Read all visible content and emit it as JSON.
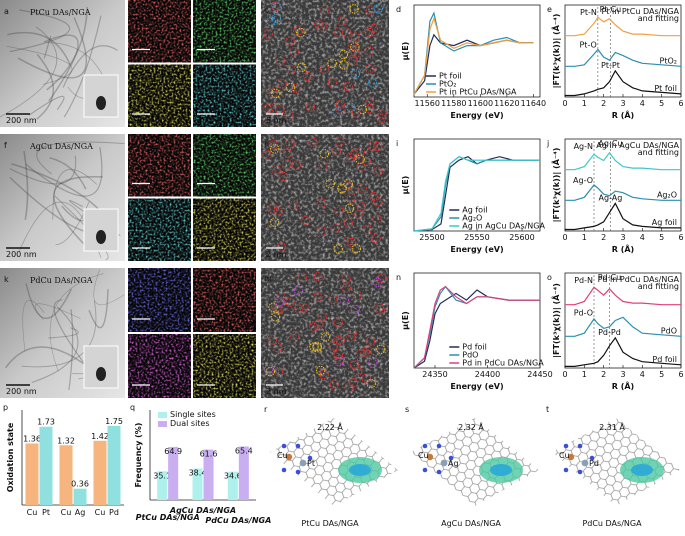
{
  "rows": [
    {
      "tem": {
        "letter": "a",
        "label": "PtCu DAs/NGA",
        "scale": "200 nm"
      },
      "eds": {
        "letter": "b",
        "maps": [
          {
            "element": "C",
            "scale": "100 nm",
            "color": "#e02424"
          },
          {
            "element": "N",
            "scale": "100 nm",
            "color": "#22c02a"
          },
          {
            "element": "Pt",
            "scale": "100 nm",
            "color": "#d8d024"
          },
          {
            "element": "Cu",
            "scale": "100 nm",
            "color": "#24bec8"
          }
        ]
      },
      "haadf": {
        "letter": "c",
        "scale": "5 nm",
        "circle_colors": [
          "#e03030",
          "#f0c020",
          "#30a0e0"
        ]
      },
      "xanes": {
        "letter": "d",
        "type": "line",
        "ylabel": "μ(E)",
        "xlabel": "Energy (eV)",
        "xlim": [
          11550,
          11645
        ],
        "ylim": [
          0,
          1.7
        ],
        "xticks": [
          11560,
          11580,
          11600,
          11620,
          11640
        ],
        "legend": "lower left",
        "x": [
          11550,
          11558,
          11562,
          11565,
          11570,
          11580,
          11590,
          11600,
          11610,
          11620,
          11630,
          11640
        ],
        "series": [
          {
            "name": "Pt foil",
            "color": "#1f2d5c",
            "values": [
              0.05,
              0.3,
              0.95,
              1.15,
              1.0,
              0.95,
              1.05,
              0.95,
              1.0,
              1.05,
              1.0,
              1.0
            ]
          },
          {
            "name": "PtO₂",
            "color": "#2a8fb0",
            "values": [
              0.05,
              0.4,
              1.4,
              1.55,
              1.0,
              0.85,
              0.95,
              0.95,
              1.05,
              1.1,
              1.0,
              1.0
            ]
          },
          {
            "name": "Pt in PtCu DAs/NGA",
            "color": "#f0a040",
            "values": [
              0.05,
              0.4,
              1.25,
              1.45,
              1.05,
              0.9,
              1.0,
              0.95,
              1.0,
              1.05,
              1.0,
              1.0
            ]
          }
        ]
      },
      "exafs": {
        "letter": "e",
        "type": "line",
        "ylabel": "|FT(k³χ(k))| (Å⁻⁴)",
        "xlabel": "R (Å)",
        "xlim": [
          0,
          6
        ],
        "ylim": [
          0,
          3
        ],
        "xticks": [
          0,
          1,
          2,
          3,
          4,
          5,
          6
        ],
        "guides": [
          1.7,
          2.35
        ],
        "annotations": [
          "Pt-N",
          "Pt-Cu",
          "Pt-O",
          "Pt-Pt"
        ],
        "x": [
          0,
          0.5,
          1,
          1.5,
          1.7,
          2,
          2.3,
          2.6,
          3,
          3.5,
          4,
          5,
          6
        ],
        "series": [
          {
            "name": [
              "Pt in PtCu DAs/NGA",
              "and fitting"
            ],
            "color": "#f0a040",
            "values": [
              2.0,
              2.0,
              2.05,
              2.4,
              2.6,
              2.45,
              2.55,
              2.35,
              2.15,
              2.05,
              2.05,
              2.0,
              2.0
            ]
          },
          {
            "name": "PtO₂",
            "color": "#2a8fb0",
            "values": [
              1.0,
              1.0,
              1.05,
              1.4,
              1.55,
              1.3,
              1.2,
              1.45,
              1.35,
              1.2,
              1.1,
              1.05,
              1.0
            ]
          },
          {
            "name": "Pt foil",
            "color": "#111111",
            "values": [
              0.05,
              0.05,
              0.1,
              0.2,
              0.25,
              0.3,
              0.5,
              0.85,
              0.5,
              0.3,
              0.2,
              0.15,
              0.1
            ]
          }
        ]
      }
    },
    {
      "tem": {
        "letter": "f",
        "label": "AgCu DAs/NGA",
        "scale": "200 nm"
      },
      "eds": {
        "letter": "g",
        "maps": [
          {
            "element": "C",
            "scale": "100 nm",
            "color": "#e02424"
          },
          {
            "element": "N",
            "scale": "100 nm",
            "color": "#22c02a"
          },
          {
            "element": "Ag",
            "scale": "100 nm",
            "color": "#24bec8"
          },
          {
            "element": "Cu",
            "scale": "100 nm",
            "color": "#d8d024"
          }
        ]
      },
      "haadf": {
        "letter": "h",
        "scale": "2 nm",
        "circle_colors": [
          "#e03030",
          "#f0c020"
        ]
      },
      "xanes": {
        "letter": "i",
        "type": "line",
        "ylabel": "μ(E)",
        "xlabel": "Energy (eV)",
        "xlim": [
          25480,
          25620
        ],
        "ylim": [
          0,
          1.3
        ],
        "xticks": [
          25500,
          25550,
          25600
        ],
        "legend": "lower right",
        "x": [
          25480,
          25500,
          25510,
          25515,
          25520,
          25530,
          25540,
          25550,
          25560,
          25575,
          25590,
          25605,
          25620
        ],
        "series": [
          {
            "name": "Ag foil",
            "color": "#1f2d5c",
            "values": [
              0.0,
              0.02,
              0.1,
              0.5,
              0.9,
              1.0,
              1.05,
              0.95,
              1.0,
              1.05,
              1.0,
              1.0,
              1.0
            ]
          },
          {
            "name": "Ag₂O",
            "color": "#2a8fb0",
            "values": [
              0.0,
              0.03,
              0.2,
              0.65,
              0.95,
              1.05,
              1.0,
              0.95,
              1.0,
              1.0,
              1.0,
              1.0,
              1.0
            ]
          },
          {
            "name": "Ag in AgCu DAs/NGA",
            "color": "#3cc8c8",
            "values": [
              0.0,
              0.03,
              0.25,
              0.7,
              0.95,
              1.05,
              1.0,
              1.0,
              1.0,
              1.0,
              1.0,
              1.0,
              1.0
            ]
          }
        ]
      },
      "exafs": {
        "letter": "j",
        "type": "line",
        "ylabel": "|FT(k³χ(k))| (Å⁻⁴)",
        "xlabel": "R (Å)",
        "xlim": [
          0,
          6
        ],
        "ylim": [
          0,
          3
        ],
        "xticks": [
          0,
          1,
          2,
          3,
          4,
          5,
          6
        ],
        "guides": [
          1.5,
          2.35
        ],
        "annotations": [
          "Ag-N",
          "Ag-Cu",
          "Ag-O",
          "Ag-Ag"
        ],
        "x": [
          0,
          0.5,
          1,
          1.5,
          1.7,
          2,
          2.3,
          2.6,
          3,
          3.5,
          4,
          5,
          6
        ],
        "series": [
          {
            "name": [
              "Ag in AgCu DAs/NGA",
              "and fitting"
            ],
            "color": "#3cc8c8",
            "values": [
              2.0,
              2.0,
              2.1,
              2.5,
              2.4,
              2.3,
              2.55,
              2.3,
              2.1,
              2.05,
              2.05,
              2.0,
              2.0
            ]
          },
          {
            "name": "Ag₂O",
            "color": "#2a8fb0",
            "values": [
              1.0,
              1.0,
              1.1,
              1.5,
              1.4,
              1.2,
              1.15,
              1.3,
              1.25,
              1.1,
              1.05,
              1.0,
              1.0
            ]
          },
          {
            "name": "Ag foil",
            "color": "#111111",
            "values": [
              0.05,
              0.05,
              0.1,
              0.15,
              0.2,
              0.3,
              0.6,
              0.9,
              0.4,
              0.2,
              0.15,
              0.1,
              0.1
            ]
          }
        ]
      }
    },
    {
      "tem": {
        "letter": "k",
        "label": "PdCu DAs/NGA",
        "scale": "200 nm"
      },
      "eds": {
        "letter": "l",
        "maps": [
          {
            "element": "C",
            "scale": "100 nm",
            "color": "#2a2ae0"
          },
          {
            "element": "N",
            "scale": "100 nm",
            "color": "#e02424"
          },
          {
            "element": "Pd",
            "scale": "100 nm",
            "color": "#d024d0"
          },
          {
            "element": "Cu",
            "scale": "100 nm",
            "color": "#d8d024"
          }
        ]
      },
      "haadf": {
        "letter": "m",
        "scale": "2 nm",
        "circle_colors": [
          "#e03030",
          "#f0c020",
          "#c040e0"
        ]
      },
      "xanes": {
        "letter": "n",
        "type": "line",
        "ylabel": "μ(E)",
        "xlabel": "Energy (eV)",
        "xlim": [
          24330,
          24450
        ],
        "ylim": [
          0,
          1.4
        ],
        "xticks": [
          24350,
          24400,
          24450
        ],
        "legend": "lower right",
        "x": [
          24330,
          24340,
          24345,
          24350,
          24355,
          24360,
          24370,
          24380,
          24390,
          24400,
          24420,
          24440,
          24450
        ],
        "series": [
          {
            "name": "Pd foil",
            "color": "#1f2d5c",
            "values": [
              0,
              0.1,
              0.4,
              0.8,
              0.95,
              1.0,
              1.1,
              1.0,
              1.15,
              1.05,
              1.0,
              1.0,
              1.0
            ]
          },
          {
            "name": "PdO",
            "color": "#2a8fb0",
            "values": [
              0,
              0.15,
              0.5,
              0.9,
              1.1,
              1.2,
              1.0,
              0.95,
              1.05,
              1.05,
              1.0,
              1.0,
              1.0
            ]
          },
          {
            "name": "Pd in PdCu DAs/NGA",
            "color": "#e0407a",
            "values": [
              0,
              0.15,
              0.55,
              0.95,
              1.15,
              1.2,
              1.05,
              0.95,
              1.05,
              1.05,
              1.0,
              1.0,
              1.0
            ]
          }
        ]
      },
      "exafs": {
        "letter": "o",
        "type": "line",
        "ylabel": "|FT(k³χ(k))| (Å⁻⁴)",
        "xlabel": "R (Å)",
        "xlim": [
          0,
          6
        ],
        "ylim": [
          0,
          3
        ],
        "xticks": [
          0,
          1,
          2,
          3,
          4,
          5,
          6
        ],
        "guides": [
          1.5,
          2.3
        ],
        "annotations": [
          "Pd-N",
          "Pd-Cu",
          "Pd-O",
          "Pd-Pd"
        ],
        "x": [
          0,
          0.5,
          1,
          1.5,
          1.7,
          2,
          2.3,
          2.6,
          3,
          3.5,
          4,
          5,
          6
        ],
        "series": [
          {
            "name": [
              "Pd in PdCu DAs/NGA",
              "and fitting"
            ],
            "color": "#e0407a",
            "values": [
              2.0,
              2.0,
              2.1,
              2.55,
              2.45,
              2.3,
              2.5,
              2.3,
              2.1,
              2.05,
              2.05,
              2.0,
              2.0
            ]
          },
          {
            "name": "PdO",
            "color": "#2a8fb0",
            "values": [
              1.0,
              1.0,
              1.1,
              1.55,
              1.4,
              1.25,
              1.3,
              1.5,
              1.6,
              1.3,
              1.1,
              1.05,
              1.0
            ]
          },
          {
            "name": "Pd foil",
            "color": "#111111",
            "values": [
              0.05,
              0.05,
              0.1,
              0.15,
              0.2,
              0.4,
              0.7,
              0.95,
              0.5,
              0.3,
              0.2,
              0.15,
              0.1
            ]
          }
        ]
      }
    }
  ],
  "bottom": {
    "oxidation": {
      "letter": "p",
      "type": "bar",
      "ylabel": "Oxidation state",
      "ylim": [
        0,
        2.1
      ],
      "categories": [
        "Cu",
        "Pt",
        "Cu",
        "Ag",
        "Cu",
        "Pd"
      ],
      "values": [
        1.36,
        1.73,
        1.32,
        0.36,
        1.42,
        1.75
      ],
      "colors": [
        "#f6b47f",
        "#8fe0de"
      ]
    },
    "frequency": {
      "letter": "q",
      "type": "bar",
      "ylabel": "Frequency (%)",
      "ylim": [
        0,
        110
      ],
      "legend": "upper left",
      "categories": [
        "PtCu DAs/NGA",
        "AgCu DAs/NGA",
        "PdCu DAs/NGA"
      ],
      "series": [
        {
          "name": "Single sites",
          "color": "#aef0ec",
          "values": [
            35.1,
            38.4,
            34.6
          ]
        },
        {
          "name": "Dual sites",
          "color": "#c9aef2",
          "values": [
            64.9,
            61.6,
            65.4
          ]
        }
      ]
    },
    "models": [
      {
        "letter": "r",
        "distance": "2.22 Å",
        "label": "PtCu DAs/NGA",
        "atoms": [
          "Cu",
          "Pt"
        ]
      },
      {
        "letter": "s",
        "distance": "2.32 Å",
        "label": "AgCu DAs/NGA",
        "atoms": [
          "Cu",
          "Ag"
        ]
      },
      {
        "letter": "t",
        "distance": "2.31 Å",
        "label": "PdCu DAs/NGA",
        "atoms": [
          "Cu",
          "Pd"
        ]
      }
    ]
  }
}
